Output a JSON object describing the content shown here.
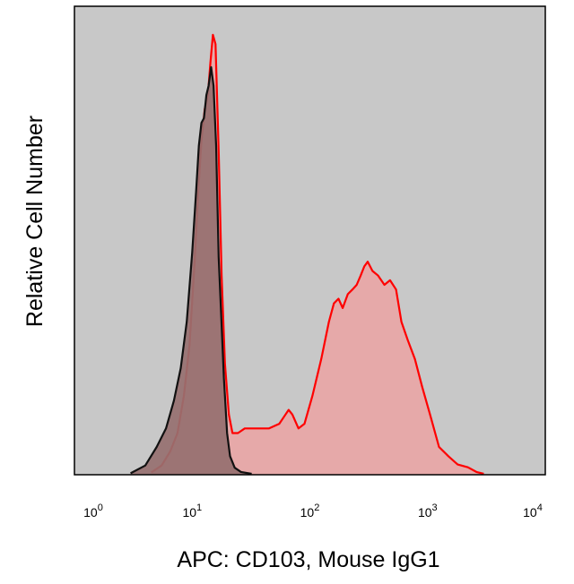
{
  "chart_data": {
    "type": "area",
    "title": "",
    "xlabel": "APC: CD103, Mouse IgG1",
    "ylabel": "Relative Cell Number",
    "x_scale": "log",
    "xlim": [
      1,
      10000
    ],
    "ylim": [
      0,
      100
    ],
    "grid": false,
    "x_ticks": [
      {
        "value": 1,
        "base": "10",
        "exp": "0"
      },
      {
        "value": 10,
        "base": "10",
        "exp": "1"
      },
      {
        "value": 100,
        "base": "10",
        "exp": "2"
      },
      {
        "value": 1000,
        "base": "10",
        "exp": "3"
      },
      {
        "value": 10000,
        "base": "10",
        "exp": "4"
      }
    ],
    "plot_background": "#c8c8c8",
    "series": [
      {
        "color": "#ff0000",
        "fill": "#e8a6a6",
        "x": [
          4.5,
          5.5,
          6.5,
          7.5,
          8.5,
          9.5,
          10.5,
          11.2,
          12.0,
          12.8,
          13.6,
          14.3,
          15.0,
          15.8,
          16.8,
          17.8,
          19.0,
          20.5,
          22.0,
          24.5,
          28.0,
          35.0,
          45.0,
          55.0,
          62.0,
          66.0,
          71.0,
          80.0,
          90.0,
          105.0,
          125.0,
          145.0,
          160.0,
          175.0,
          190.0,
          210.0,
          230.0,
          250.0,
          270.0,
          290.0,
          310.0,
          340.0,
          380.0,
          430.0,
          480.0,
          540.0,
          600.0,
          680.0,
          780.0,
          900.0,
          1050.0,
          1250.0,
          1500.0,
          1800.0,
          2200.0,
          2600.0,
          3000.0
        ],
        "y": [
          0.5,
          2,
          5,
          9,
          17,
          28,
          46,
          60,
          72,
          79,
          82,
          89,
          95,
          93,
          70,
          43,
          24,
          13,
          9,
          9,
          10,
          10,
          10,
          11,
          13,
          14,
          13,
          10,
          11,
          17,
          25,
          33,
          37,
          38,
          36,
          39,
          40,
          41,
          43,
          45,
          46,
          44,
          43,
          41,
          42,
          40,
          33,
          29,
          25,
          19,
          13,
          6,
          4,
          2.2,
          1.6,
          0.6,
          0.2
        ]
      },
      {
        "color": "#111111",
        "fill": "#967070",
        "x": [
          3.0,
          4.0,
          5.0,
          6.0,
          7.0,
          8.0,
          9.0,
          10.0,
          10.8,
          11.4,
          12.0,
          12.6,
          13.2,
          13.8,
          14.5,
          15.2,
          16.0,
          16.8,
          17.6,
          18.6,
          19.8,
          21.0,
          23.0,
          26.0,
          32.0
        ],
        "y": [
          0.3,
          2,
          6,
          10,
          16,
          23,
          33,
          48,
          61,
          71,
          76,
          77,
          82,
          84,
          88,
          84,
          71,
          47,
          35,
          21,
          9,
          4,
          1.5,
          0.6,
          0.2
        ]
      }
    ]
  }
}
